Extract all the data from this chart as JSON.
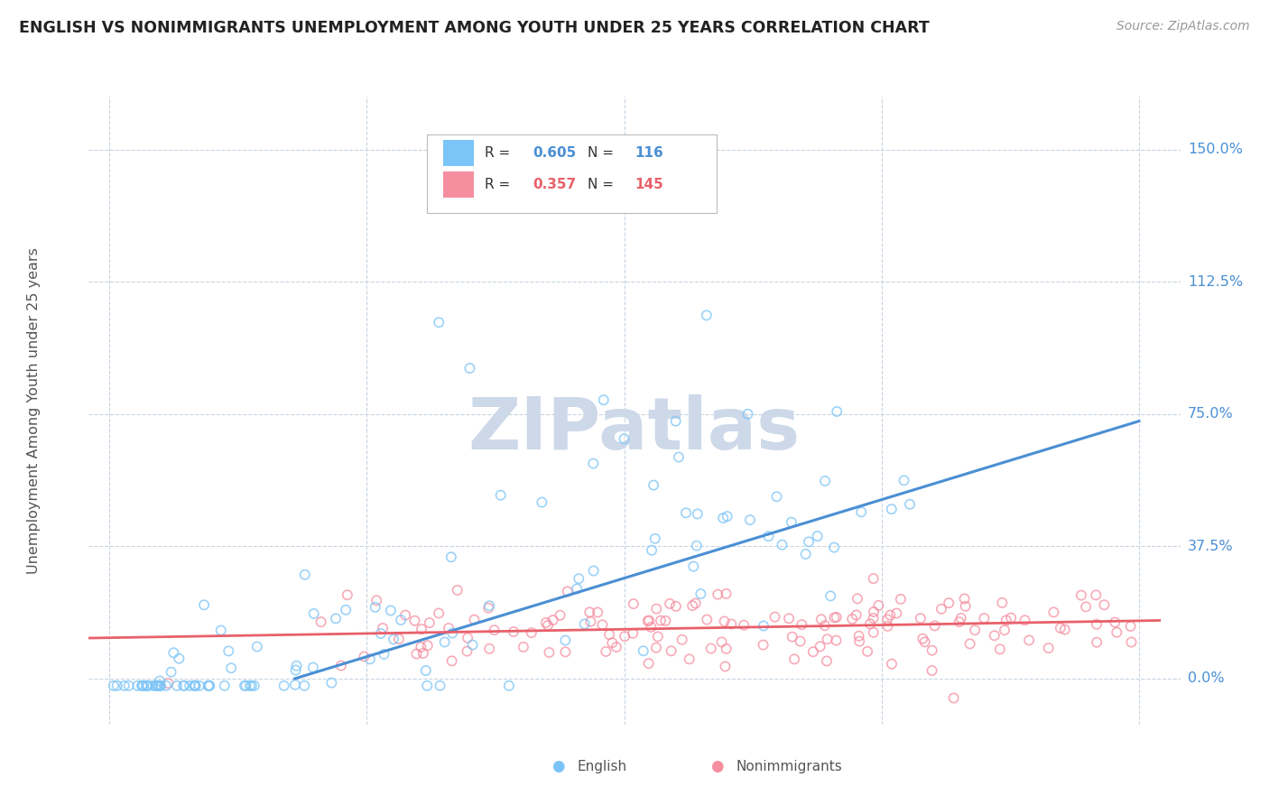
{
  "title": "ENGLISH VS NONIMMIGRANTS UNEMPLOYMENT AMONG YOUTH UNDER 25 YEARS CORRELATION CHART",
  "source": "Source: ZipAtlas.com",
  "ylabel": "Unemployment Among Youth under 25 years",
  "yticks": [
    0.0,
    0.375,
    0.75,
    1.125,
    1.5
  ],
  "ytick_labels": [
    "0.0%",
    "37.5%",
    "75.0%",
    "112.5%",
    "150.0%"
  ],
  "xlim": [
    -0.02,
    1.04
  ],
  "ylim": [
    -0.13,
    1.65
  ],
  "legend_english_R": "0.605",
  "legend_english_N": "116",
  "legend_nonimm_R": "0.357",
  "legend_nonimm_N": "145",
  "english_color": "#7bc4f7",
  "nonimm_color": "#f58fa0",
  "english_line_color": "#4a8fd4",
  "nonimm_line_color": "#e8606a",
  "watermark_color": "#cdd8e8",
  "background_color": "#ffffff",
  "grid_color": "#c8d4e0",
  "title_color": "#222222",
  "axis_label_color": "#555555",
  "tick_label_color": "#4a8fd4",
  "english_n": 116,
  "nonimm_n": 145,
  "eng_line_x0": 0.18,
  "eng_line_y0": 0.0,
  "eng_line_x1": 1.0,
  "eng_line_y1": 0.73,
  "nim_line_x0": -0.02,
  "nim_line_y0": 0.115,
  "nim_line_x1": 1.02,
  "nim_line_y1": 0.165
}
